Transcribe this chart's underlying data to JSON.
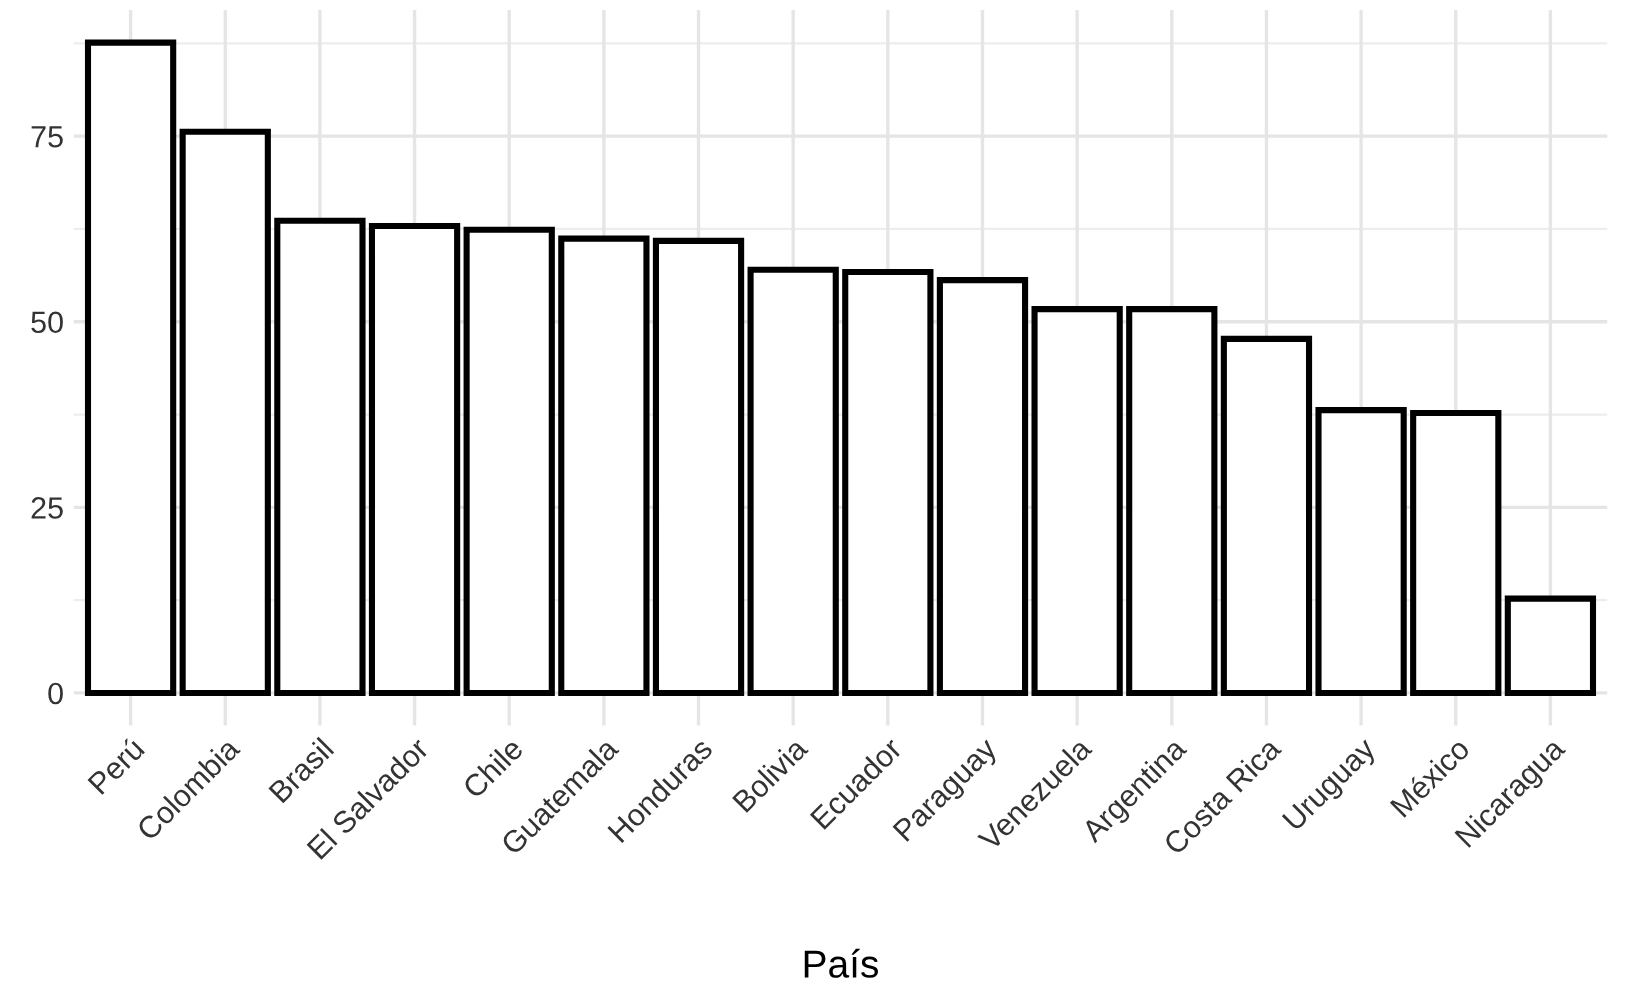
{
  "chart_data": {
    "type": "bar",
    "xlabel": "País",
    "categories": [
      "Perú",
      "Colombia",
      "Brasil",
      "El Salvador",
      "Chile",
      "Guatemala",
      "Honduras",
      "Bolivia",
      "Ecuador",
      "Paraguay",
      "Venezuela",
      "Argentina",
      "Costa Rica",
      "Uruguay",
      "México",
      "Nicaragua"
    ],
    "values": [
      87.6,
      75.6,
      63.6,
      62.9,
      62.4,
      61.2,
      60.9,
      57.0,
      56.7,
      55.6,
      51.7,
      51.7,
      47.7,
      38.1,
      37.7,
      12.7
    ],
    "color": "#ffffff",
    "ylim": [
      -4.4,
      92
    ],
    "yticks": [
      0,
      25,
      50,
      75
    ],
    "grid": true
  }
}
